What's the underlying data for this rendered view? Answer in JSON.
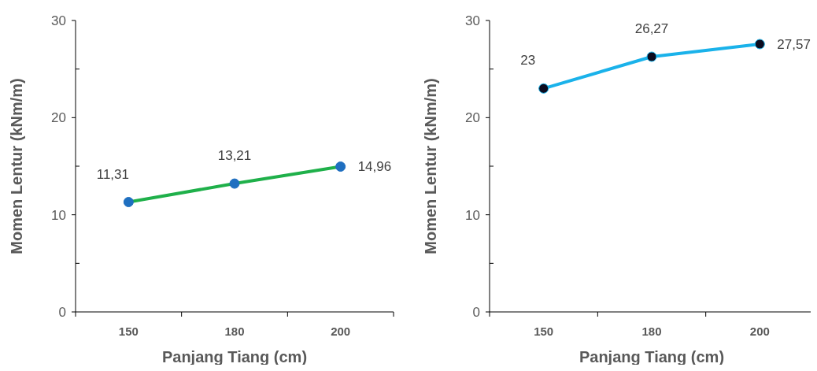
{
  "chart_data": [
    {
      "type": "line",
      "xlabel": "Panjang Tiang (cm)",
      "ylabel": "Momen Lentur (kNm/m)",
      "categories": [
        "150",
        "180",
        "200"
      ],
      "ylim": [
        0,
        30
      ],
      "yticks": [
        0,
        {
          "value": 5,
          "label": null
        },
        10,
        {
          "value": 15,
          "label": null
        },
        20,
        {
          "value": 25,
          "label": null
        },
        30
      ],
      "marker": "circle",
      "grid": false,
      "series": [
        {
          "color": "#1fb04a",
          "colors": [
            "#1f6fc0",
            "#1f6fc0",
            "#1f6fc0"
          ],
          "values": [
            11.31,
            13.21,
            14.96
          ],
          "value_labels": [
            "11,31",
            "13,21",
            "14,96"
          ]
        }
      ]
    },
    {
      "type": "line",
      "xlabel": "Panjang Tiang (cm)",
      "ylabel": "Momen Lentur (kNm/m)",
      "categories": [
        "150",
        "180",
        "200"
      ],
      "ylim": [
        0,
        30
      ],
      "yticks": [
        0,
        {
          "value": 5,
          "label": null
        },
        10,
        {
          "value": 15,
          "label": null
        },
        20,
        {
          "value": 25,
          "label": null
        },
        30
      ],
      "marker": "circle",
      "grid": false,
      "series": [
        {
          "color": "#1ab2ea",
          "colors": [
            "#0b0b1e",
            "#0b0b1e",
            "#0b0b1e"
          ],
          "values": [
            23,
            26.27,
            27.57
          ],
          "value_labels": [
            "23",
            "26,27",
            "27,57"
          ]
        }
      ]
    }
  ]
}
